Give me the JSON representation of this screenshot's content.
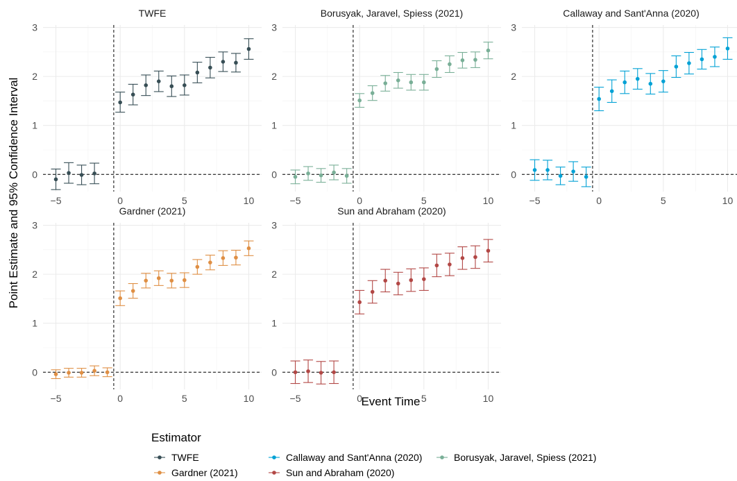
{
  "chart_data": {
    "type": "scatter",
    "subtype": "point-estimate with 95% confidence interval error bars, faceted",
    "xlabel": "Event Time",
    "ylabel": "Point Estimate and 95% Confidence Interval",
    "xlim": [
      -6,
      11
    ],
    "ylim": [
      -0.35,
      3.05
    ],
    "xticks": [
      -5,
      0,
      5,
      10
    ],
    "yticks": [
      0,
      1,
      2,
      3
    ],
    "x_tick_labels": [
      "−5",
      "0",
      "5",
      "10"
    ],
    "y_tick_labels": [
      "0",
      "1",
      "2",
      "3"
    ],
    "grid": true,
    "reference_lines": {
      "vertical_x": -0.5,
      "horizontal_y": 0,
      "style": "dashed"
    },
    "legend": {
      "title": "Estimator",
      "position": "bottom",
      "entries": [
        {
          "label": "TWFE",
          "color": "#374e55"
        },
        {
          "label": "Callaway and Sant'Anna (2020)",
          "color": "#00a1d5"
        },
        {
          "label": "Borusyak, Jaravel, Spiess (2021)",
          "color": "#79af97"
        },
        {
          "label": "Gardner (2021)",
          "color": "#df8f44"
        },
        {
          "label": "Sun and Abraham (2020)",
          "color": "#b24745"
        }
      ]
    },
    "panels": [
      {
        "title": "TWFE",
        "color": "#374e55",
        "x": [
          -5,
          -4,
          -3,
          -2,
          0,
          1,
          2,
          3,
          4,
          5,
          6,
          7,
          8,
          9,
          10
        ],
        "estimate": [
          -0.1,
          0.03,
          -0.01,
          0.02,
          1.47,
          1.63,
          1.82,
          1.9,
          1.8,
          1.82,
          2.08,
          2.18,
          2.3,
          2.28,
          2.56
        ],
        "ci_low": [
          -0.31,
          -0.18,
          -0.21,
          -0.19,
          1.27,
          1.42,
          1.61,
          1.69,
          1.59,
          1.62,
          1.87,
          1.97,
          2.1,
          2.09,
          2.35
        ],
        "ci_high": [
          0.11,
          0.24,
          0.19,
          0.23,
          1.68,
          1.84,
          2.03,
          2.11,
          2.01,
          2.03,
          2.29,
          2.39,
          2.5,
          2.47,
          2.77
        ]
      },
      {
        "title": "Borusyak, Jaravel, Spiess (2021)",
        "color": "#79af97",
        "x": [
          -5,
          -4,
          -3,
          -2,
          -1,
          0,
          1,
          2,
          3,
          4,
          5,
          6,
          7,
          8,
          9,
          10
        ],
        "estimate": [
          -0.05,
          0.02,
          -0.02,
          0.04,
          -0.03,
          1.51,
          1.66,
          1.86,
          1.92,
          1.88,
          1.88,
          2.15,
          2.25,
          2.33,
          2.34,
          2.53
        ],
        "ci_low": [
          -0.19,
          -0.12,
          -0.16,
          -0.11,
          -0.18,
          1.37,
          1.51,
          1.7,
          1.76,
          1.72,
          1.72,
          1.98,
          2.08,
          2.17,
          2.18,
          2.36
        ],
        "ci_high": [
          0.09,
          0.16,
          0.12,
          0.19,
          0.12,
          1.65,
          1.81,
          2.02,
          2.08,
          2.04,
          2.04,
          2.32,
          2.42,
          2.49,
          2.5,
          2.7
        ]
      },
      {
        "title": "Callaway and Sant'Anna (2020)",
        "color": "#00a1d5",
        "x": [
          -5,
          -4,
          -3,
          -2,
          -1,
          0,
          1,
          2,
          3,
          4,
          5,
          6,
          7,
          8,
          9,
          10
        ],
        "estimate": [
          0.09,
          0.09,
          -0.03,
          0.06,
          -0.05,
          1.54,
          1.7,
          1.88,
          1.95,
          1.85,
          1.9,
          2.2,
          2.27,
          2.35,
          2.4,
          2.57
        ],
        "ci_low": [
          -0.12,
          -0.11,
          -0.21,
          -0.14,
          -0.25,
          1.3,
          1.47,
          1.65,
          1.74,
          1.64,
          1.68,
          1.98,
          2.05,
          2.15,
          2.2,
          2.35
        ],
        "ci_high": [
          0.3,
          0.29,
          0.15,
          0.26,
          0.15,
          1.78,
          1.93,
          2.11,
          2.16,
          2.06,
          2.12,
          2.42,
          2.49,
          2.55,
          2.6,
          2.79
        ]
      },
      {
        "title": "Gardner (2021)",
        "color": "#df8f44",
        "x": [
          -5,
          -4,
          -3,
          -2,
          -1,
          0,
          1,
          2,
          3,
          4,
          5,
          6,
          7,
          8,
          9,
          10
        ],
        "estimate": [
          -0.04,
          -0.01,
          -0.01,
          0.03,
          0.0,
          1.51,
          1.66,
          1.87,
          1.92,
          1.87,
          1.88,
          2.15,
          2.24,
          2.33,
          2.34,
          2.53
        ],
        "ci_low": [
          -0.13,
          -0.1,
          -0.1,
          -0.07,
          -0.09,
          1.36,
          1.51,
          1.72,
          1.77,
          1.72,
          1.73,
          2.0,
          2.09,
          2.18,
          2.19,
          2.38
        ],
        "ci_high": [
          0.05,
          0.08,
          0.08,
          0.13,
          0.09,
          1.66,
          1.81,
          2.02,
          2.07,
          2.02,
          2.03,
          2.3,
          2.39,
          2.48,
          2.49,
          2.68
        ]
      },
      {
        "title": "Sun and Abraham (2020)",
        "color": "#b24745",
        "x": [
          -5,
          -4,
          -3,
          -2,
          0,
          1,
          2,
          3,
          4,
          5,
          6,
          7,
          8,
          9,
          10
        ],
        "estimate": [
          0.0,
          0.02,
          -0.01,
          0.0,
          1.43,
          1.64,
          1.87,
          1.81,
          1.88,
          1.9,
          2.18,
          2.2,
          2.33,
          2.35,
          2.48
        ],
        "ci_low": [
          -0.23,
          -0.21,
          -0.24,
          -0.23,
          1.19,
          1.41,
          1.64,
          1.58,
          1.65,
          1.67,
          1.95,
          1.97,
          2.1,
          2.12,
          2.25
        ],
        "ci_high": [
          0.23,
          0.25,
          0.22,
          0.23,
          1.67,
          1.87,
          2.1,
          2.04,
          2.11,
          2.13,
          2.41,
          2.43,
          2.56,
          2.58,
          2.71
        ]
      }
    ]
  }
}
